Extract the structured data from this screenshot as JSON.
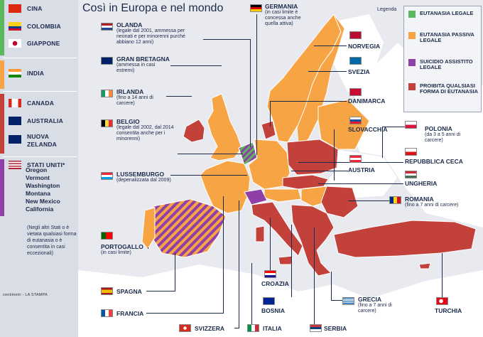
{
  "title": "Così in Europa e nel mondo",
  "legend_word": "Legenda",
  "colors": {
    "legal": "#5cb85c",
    "passive": "#f7a445",
    "suicide": "#8e3fa8",
    "prohibited": "#c2413a",
    "land": "#ffffff",
    "sea": "#e8eaef"
  },
  "legend": [
    {
      "key": "legal",
      "label": "EUTANASIA LEGALE"
    },
    {
      "key": "passive",
      "label": "EUTANASIA PASSIVA LEGALE"
    },
    {
      "key": "suicide",
      "label": "SUICIDIO ASSISTITO LEGALE"
    },
    {
      "key": "prohibited",
      "label": "PROIBITA QUALSIASI FORMA DI EUTANASIA"
    }
  ],
  "world": {
    "legal": [
      "CINA",
      "COLOMBIA",
      "GIAPPONE"
    ],
    "passive": [
      "INDIA"
    ],
    "prohibited": [
      "CANADA",
      "AUSTRALIA",
      "NUOVA ZELANDA"
    ],
    "suicide_title": "STATI UNITI*",
    "states": [
      "Oregon",
      "Vermont",
      "Washington",
      "Montana",
      "New Mexico",
      "California"
    ],
    "note": "(Negli altri Stati o è vietata qualsiasi forma di eutanasia o è consentita in casi eccezionali)"
  },
  "credit": "centimetri - LA STAMPA",
  "countries": {
    "olanda": {
      "name": "OLANDA",
      "note": "(legale dal 2001, ammessa per neonati e per minorenni purché abbiano 12 anni)"
    },
    "gran_bretagna": {
      "name": "GRAN BRETAGNA",
      "note": "(ammessa in casi estremi)"
    },
    "irlanda": {
      "name": "IRLANDA",
      "note": "(fino a 14 anni di carcere)"
    },
    "belgio": {
      "name": "BELGIO",
      "note": "(legale dal 2002, dal 2014 consentita anche per i minorenni)"
    },
    "lussemburgo": {
      "name": "LUSSEMBURGO",
      "note": "(depenalizzata dal 2009)"
    },
    "portogallo": {
      "name": "PORTOGALLO",
      "note": "(in casi limite)"
    },
    "spagna": {
      "name": "SPAGNA"
    },
    "francia": {
      "name": "FRANCIA"
    },
    "svizzera": {
      "name": "SVIZZERA"
    },
    "italia": {
      "name": "ITALIA"
    },
    "serbia": {
      "name": "SERBIA"
    },
    "bosnia": {
      "name": "BOSNIA"
    },
    "croazia": {
      "name": "CROAZIA"
    },
    "grecia": {
      "name": "GRECIA",
      "note": "(fino a 7 anni di carcere)"
    },
    "turchia": {
      "name": "TURCHIA"
    },
    "romania": {
      "name": "ROMANIA",
      "note": "(fino a 7 anni di carcere)"
    },
    "ungheria": {
      "name": "UNGHERIA"
    },
    "repubblica_ceca": {
      "name": "REPUBBLICA CECA"
    },
    "polonia": {
      "name": "POLONIA",
      "note": "(da 3 a 5 anni di carcere)"
    },
    "austria": {
      "name": "AUSTRIA"
    },
    "slovacchia": {
      "name": "SLOVACCHIA"
    },
    "danimarca": {
      "name": "DANIMARCA"
    },
    "svezia": {
      "name": "SVEZIA"
    },
    "norvegia": {
      "name": "NORVEGIA"
    },
    "germania": {
      "name": "GERMANIA",
      "note": "(in casi limite è concessa anche quella attiva)"
    }
  }
}
